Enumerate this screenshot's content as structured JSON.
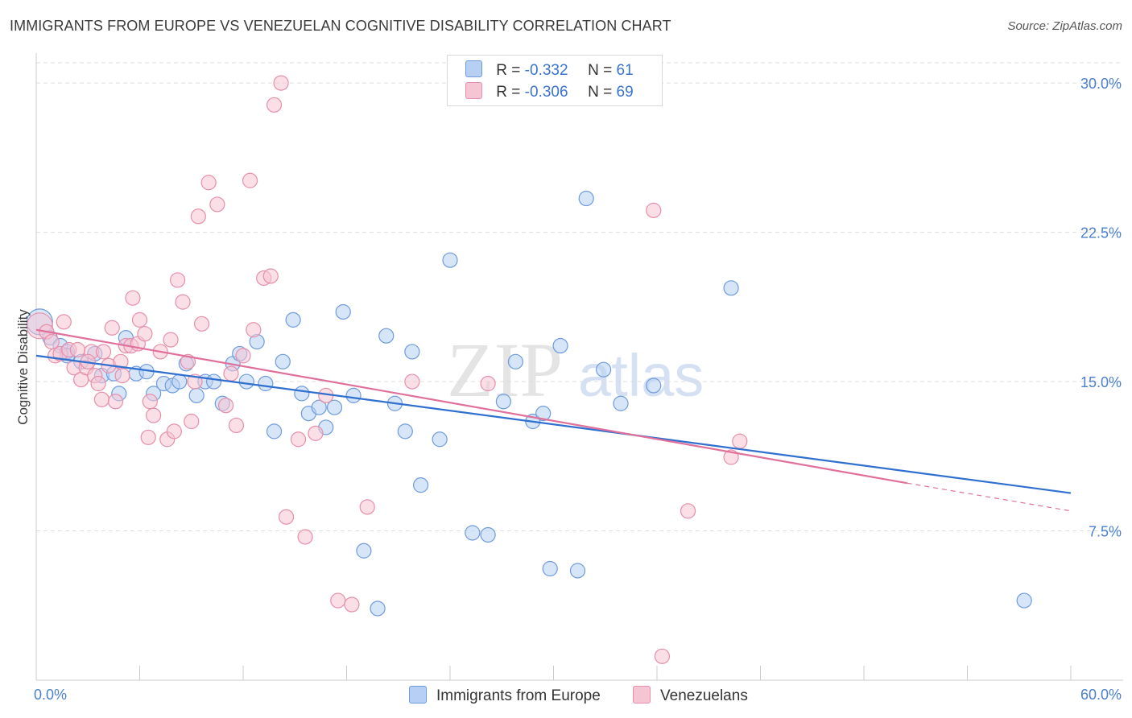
{
  "title": "IMMIGRANTS FROM EUROPE VS VENEZUELAN COGNITIVE DISABILITY CORRELATION CHART",
  "source": "Source: ZipAtlas.com",
  "watermark": {
    "zip": "ZIP",
    "atlas": "atlas"
  },
  "legend": {
    "rows": [
      {
        "r_label": "R =",
        "r_value": "-0.332",
        "n_label": "N =",
        "n_value": "61"
      },
      {
        "r_label": "R =",
        "r_value": "-0.306",
        "n_label": "N =",
        "n_value": "69"
      }
    ]
  },
  "bottom_legend": [
    "Immigrants from Europe",
    "Venezuelans"
  ],
  "colors": {
    "blue_fill": "#b6cff2",
    "blue_stroke": "#6f9bdc",
    "blue_line": "#2f6fd0",
    "pink_fill": "#f6c5d4",
    "pink_stroke": "#e68fab",
    "pink_line": "#e0709a",
    "tick_text": "#4a7fd0",
    "grid": "#dddddd"
  },
  "chart_data": {
    "type": "scatter",
    "title": "IMMIGRANTS FROM EUROPE VS VENEZUELAN COGNITIVE DISABILITY CORRELATION CHART",
    "xlabel": "",
    "ylabel": "Cognitive Disability",
    "xlim": [
      0,
      60
    ],
    "ylim": [
      0,
      31.5
    ],
    "x_tick_labels": [
      "0.0%",
      "60.0%"
    ],
    "y_ticks": [
      7.5,
      15.0,
      22.5,
      30.0
    ],
    "y_tick_labels": [
      "7.5%",
      "15.0%",
      "22.5%",
      "30.0%"
    ],
    "grid": "horizontal dashed",
    "series": [
      {
        "name": "Immigrants from Europe",
        "r": -0.332,
        "n": 61,
        "trend": {
          "x0": 0,
          "y0": 16.3,
          "x1": 60,
          "y1": 9.4
        },
        "points": [
          [
            0.2,
            18.0
          ],
          [
            0.8,
            17.2
          ],
          [
            1.4,
            16.8
          ],
          [
            1.8,
            16.5
          ],
          [
            2.6,
            16.0
          ],
          [
            3.4,
            16.4
          ],
          [
            3.8,
            15.3
          ],
          [
            4.5,
            15.4
          ],
          [
            4.8,
            14.4
          ],
          [
            5.2,
            17.2
          ],
          [
            5.8,
            15.4
          ],
          [
            6.4,
            15.5
          ],
          [
            6.8,
            14.4
          ],
          [
            7.4,
            14.9
          ],
          [
            7.9,
            14.8
          ],
          [
            8.3,
            15.0
          ],
          [
            8.7,
            15.9
          ],
          [
            9.3,
            14.3
          ],
          [
            9.8,
            15.0
          ],
          [
            10.3,
            15.0
          ],
          [
            10.8,
            13.9
          ],
          [
            11.4,
            15.9
          ],
          [
            11.8,
            16.4
          ],
          [
            12.2,
            15.0
          ],
          [
            12.8,
            17.0
          ],
          [
            13.3,
            14.9
          ],
          [
            13.8,
            12.5
          ],
          [
            14.3,
            16.0
          ],
          [
            14.9,
            18.1
          ],
          [
            15.4,
            14.4
          ],
          [
            15.8,
            13.4
          ],
          [
            16.4,
            13.7
          ],
          [
            16.8,
            12.7
          ],
          [
            17.3,
            13.7
          ],
          [
            17.8,
            18.5
          ],
          [
            18.4,
            14.3
          ],
          [
            19.0,
            6.5
          ],
          [
            19.8,
            3.6
          ],
          [
            20.3,
            17.3
          ],
          [
            20.8,
            13.9
          ],
          [
            21.4,
            12.5
          ],
          [
            21.8,
            16.5
          ],
          [
            22.3,
            9.8
          ],
          [
            23.4,
            12.1
          ],
          [
            24.0,
            21.1
          ],
          [
            25.3,
            7.4
          ],
          [
            26.2,
            7.3
          ],
          [
            27.1,
            14.0
          ],
          [
            27.8,
            16.0
          ],
          [
            28.8,
            13.0
          ],
          [
            29.4,
            13.4
          ],
          [
            29.8,
            5.6
          ],
          [
            30.4,
            16.8
          ],
          [
            31.4,
            5.5
          ],
          [
            31.9,
            24.2
          ],
          [
            32.9,
            15.6
          ],
          [
            33.9,
            13.9
          ],
          [
            35.8,
            14.8
          ],
          [
            40.3,
            19.7
          ],
          [
            57.3,
            4.0
          ],
          [
            1.8,
            16.3
          ]
        ]
      },
      {
        "name": "Venezuelans",
        "r": -0.306,
        "n": 69,
        "trend": {
          "x0": 0,
          "y0": 17.6,
          "x1": 50.5,
          "y1": 9.9,
          "dash_to_x": 60,
          "dash_to_y": 8.5
        },
        "points": [
          [
            0.2,
            17.8
          ],
          [
            0.6,
            17.5
          ],
          [
            0.9,
            17.0
          ],
          [
            1.1,
            16.3
          ],
          [
            1.4,
            16.4
          ],
          [
            1.6,
            18.0
          ],
          [
            1.9,
            16.6
          ],
          [
            2.2,
            15.7
          ],
          [
            2.6,
            15.1
          ],
          [
            2.9,
            15.7
          ],
          [
            3.2,
            16.5
          ],
          [
            3.4,
            15.3
          ],
          [
            3.6,
            14.9
          ],
          [
            3.9,
            16.5
          ],
          [
            3.8,
            14.1
          ],
          [
            4.2,
            15.8
          ],
          [
            4.4,
            17.7
          ],
          [
            4.6,
            14.0
          ],
          [
            5.0,
            15.3
          ],
          [
            5.2,
            16.8
          ],
          [
            5.5,
            16.8
          ],
          [
            5.6,
            19.2
          ],
          [
            5.9,
            16.9
          ],
          [
            6.0,
            18.1
          ],
          [
            6.3,
            17.4
          ],
          [
            6.5,
            12.2
          ],
          [
            6.6,
            14.0
          ],
          [
            6.8,
            13.3
          ],
          [
            7.2,
            16.5
          ],
          [
            7.6,
            12.1
          ],
          [
            7.8,
            17.1
          ],
          [
            8.0,
            12.5
          ],
          [
            8.2,
            20.1
          ],
          [
            8.5,
            19.0
          ],
          [
            8.8,
            16.0
          ],
          [
            9.0,
            13.0
          ],
          [
            9.2,
            15.0
          ],
          [
            9.4,
            23.3
          ],
          [
            9.6,
            17.9
          ],
          [
            10.0,
            25.0
          ],
          [
            10.5,
            23.9
          ],
          [
            11.0,
            13.8
          ],
          [
            11.3,
            15.4
          ],
          [
            11.6,
            12.8
          ],
          [
            12.0,
            16.3
          ],
          [
            12.4,
            25.1
          ],
          [
            12.6,
            17.6
          ],
          [
            13.2,
            20.2
          ],
          [
            13.6,
            20.3
          ],
          [
            13.8,
            28.9
          ],
          [
            14.2,
            30.0
          ],
          [
            14.5,
            8.2
          ],
          [
            15.2,
            12.1
          ],
          [
            15.6,
            7.2
          ],
          [
            16.2,
            12.4
          ],
          [
            16.8,
            14.3
          ],
          [
            17.5,
            4.0
          ],
          [
            19.2,
            8.7
          ],
          [
            21.8,
            15.0
          ],
          [
            26.2,
            14.9
          ],
          [
            35.8,
            23.6
          ],
          [
            37.8,
            8.5
          ],
          [
            40.3,
            11.2
          ],
          [
            40.8,
            12.0
          ],
          [
            18.3,
            3.8
          ],
          [
            36.3,
            1.2
          ],
          [
            2.4,
            16.6
          ],
          [
            3.0,
            16.0
          ],
          [
            4.9,
            16.0
          ]
        ]
      }
    ]
  }
}
